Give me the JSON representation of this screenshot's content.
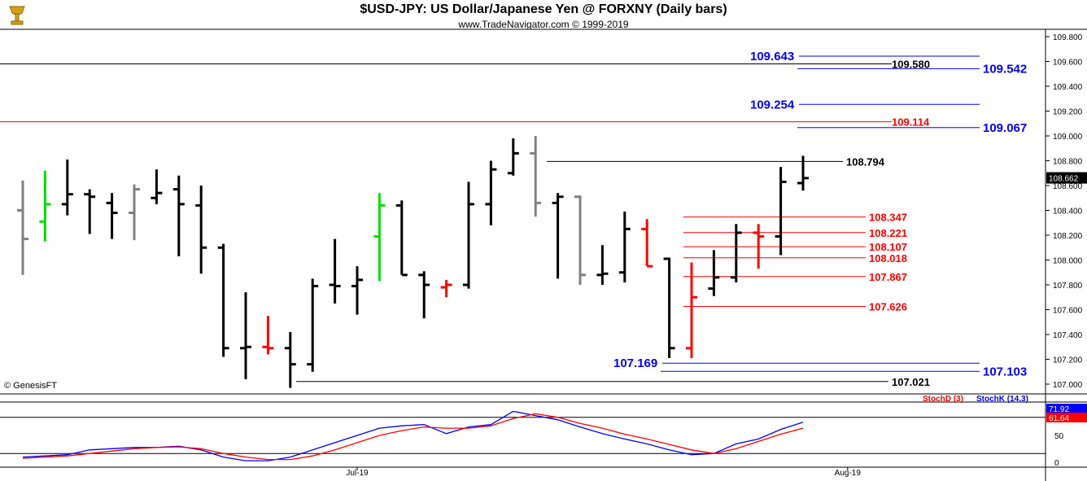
{
  "header": {
    "title": "$USD-JPY:  US Dollar/Japanese Yen @ FORXNY  (Daily bars)",
    "subtitle": "www.TradeNavigator.com © 1999-2019"
  },
  "credit": "© GenesisFT",
  "colors": {
    "blue": "#0000ff",
    "red": "#ff0000",
    "black": "#000000",
    "gray": "#808080",
    "green": "#00e000",
    "logo": "#d4a017"
  },
  "chart_data": [
    {
      "type": "ohlc",
      "title": "$USD-JPY:  US Dollar/Japanese Yen @ FORXNY  (Daily bars)",
      "ylim": [
        106.95,
        109.7
      ],
      "yticks": [
        "109.800",
        "109.600",
        "109.400",
        "109.200",
        "109.000",
        "108.800",
        "108.600",
        "108.400",
        "108.200",
        "108.000",
        "107.800",
        "107.600",
        "107.400",
        "107.200",
        "107.000"
      ],
      "ytick_values": [
        109.8,
        109.6,
        109.4,
        109.2,
        109.0,
        108.8,
        108.6,
        108.4,
        108.2,
        108.0,
        107.8,
        107.6,
        107.4,
        107.2,
        107.0
      ],
      "last_price": "108.662",
      "xlabels": [
        {
          "label": "Jul-19",
          "bar": 15
        },
        {
          "label": "Aug-19",
          "bar": 37
        }
      ],
      "bars": [
        {
          "o": 108.4,
          "h": 108.64,
          "l": 107.88,
          "c": 108.17,
          "color": "gray"
        },
        {
          "o": 108.31,
          "h": 108.72,
          "l": 108.15,
          "c": 108.45,
          "color": "green"
        },
        {
          "o": 108.45,
          "h": 108.81,
          "l": 108.36,
          "c": 108.53,
          "color": "black"
        },
        {
          "o": 108.53,
          "h": 108.57,
          "l": 108.21,
          "c": 108.51,
          "color": "black"
        },
        {
          "o": 108.46,
          "h": 108.54,
          "l": 108.17,
          "c": 108.38,
          "color": "black"
        },
        {
          "o": 108.38,
          "h": 108.61,
          "l": 108.16,
          "c": 108.57,
          "color": "gray"
        },
        {
          "o": 108.5,
          "h": 108.73,
          "l": 108.45,
          "c": 108.54,
          "color": "black"
        },
        {
          "o": 108.57,
          "h": 108.68,
          "l": 108.03,
          "c": 108.45,
          "color": "black"
        },
        {
          "o": 108.44,
          "h": 108.6,
          "l": 107.89,
          "c": 108.1,
          "color": "black"
        },
        {
          "o": 108.1,
          "h": 108.13,
          "l": 107.22,
          "c": 107.29,
          "color": "black"
        },
        {
          "o": 107.29,
          "h": 107.74,
          "l": 107.04,
          "c": 107.3,
          "color": "black"
        },
        {
          "o": 107.3,
          "h": 107.55,
          "l": 107.24,
          "c": 107.29,
          "color": "red"
        },
        {
          "o": 107.29,
          "h": 107.42,
          "l": 106.97,
          "c": 107.16,
          "color": "black"
        },
        {
          "o": 107.16,
          "h": 107.85,
          "l": 107.1,
          "c": 107.79,
          "color": "black"
        },
        {
          "o": 107.8,
          "h": 108.17,
          "l": 107.65,
          "c": 107.79,
          "color": "black"
        },
        {
          "o": 107.79,
          "h": 107.95,
          "l": 107.56,
          "c": 107.84,
          "color": "black"
        },
        {
          "o": 108.19,
          "h": 108.54,
          "l": 107.83,
          "c": 108.44,
          "color": "green"
        },
        {
          "o": 108.44,
          "h": 108.48,
          "l": 107.88,
          "c": 107.88,
          "color": "black"
        },
        {
          "o": 107.88,
          "h": 107.91,
          "l": 107.53,
          "c": 107.8,
          "color": "black"
        },
        {
          "o": 107.78,
          "h": 107.84,
          "l": 107.7,
          "c": 107.8,
          "color": "red"
        },
        {
          "o": 107.8,
          "h": 108.63,
          "l": 107.77,
          "c": 108.45,
          "color": "black"
        },
        {
          "o": 108.45,
          "h": 108.8,
          "l": 108.28,
          "c": 108.73,
          "color": "black"
        },
        {
          "o": 108.7,
          "h": 108.98,
          "l": 108.68,
          "c": 108.86,
          "color": "black"
        },
        {
          "o": 108.86,
          "h": 109.0,
          "l": 108.35,
          "c": 108.46,
          "color": "gray"
        },
        {
          "o": 108.46,
          "h": 108.54,
          "l": 107.85,
          "c": 108.51,
          "color": "black"
        },
        {
          "o": 108.51,
          "h": 108.52,
          "l": 107.8,
          "c": 107.88,
          "color": "gray"
        },
        {
          "o": 107.88,
          "h": 108.12,
          "l": 107.8,
          "c": 107.89,
          "color": "black"
        },
        {
          "o": 107.9,
          "h": 108.39,
          "l": 107.82,
          "c": 108.25,
          "color": "black"
        },
        {
          "o": 108.25,
          "h": 108.33,
          "l": 107.95,
          "c": 107.95,
          "color": "red"
        },
        {
          "o": 108.01,
          "h": 108.02,
          "l": 107.21,
          "c": 107.29,
          "color": "black"
        },
        {
          "o": 107.29,
          "h": 107.98,
          "l": 107.21,
          "c": 107.7,
          "color": "red"
        },
        {
          "o": 107.77,
          "h": 108.08,
          "l": 107.71,
          "c": 107.86,
          "color": "black"
        },
        {
          "o": 107.86,
          "h": 108.29,
          "l": 107.82,
          "c": 108.22,
          "color": "black"
        },
        {
          "o": 108.22,
          "h": 108.29,
          "l": 107.93,
          "c": 108.19,
          "color": "red"
        },
        {
          "o": 108.19,
          "h": 108.75,
          "l": 108.04,
          "c": 108.63,
          "color": "black"
        },
        {
          "o": 108.62,
          "h": 108.84,
          "l": 108.56,
          "c": 108.66,
          "color": "black"
        }
      ],
      "levels": [
        {
          "value": 109.643,
          "label": "109.643",
          "color": "blue",
          "side": "left"
        },
        {
          "value": 109.58,
          "label": "109.580",
          "color": "black",
          "side": "right"
        },
        {
          "value": 109.542,
          "label": "109.542",
          "color": "blue",
          "side": "right"
        },
        {
          "value": 109.254,
          "label": "109.254",
          "color": "blue",
          "side": "left"
        },
        {
          "value": 109.114,
          "label": "109.114",
          "color": "red",
          "side": "right"
        },
        {
          "value": 109.067,
          "label": "109.067",
          "color": "blue",
          "side": "right"
        },
        {
          "value": 108.794,
          "label": "108.794",
          "color": "black",
          "side": "right"
        },
        {
          "value": 108.347,
          "label": "108.347",
          "color": "red",
          "side": "right"
        },
        {
          "value": 108.221,
          "label": "108.221",
          "color": "red",
          "side": "right"
        },
        {
          "value": 108.107,
          "label": "108.107",
          "color": "red",
          "side": "right"
        },
        {
          "value": 108.018,
          "label": "108.018",
          "color": "red",
          "side": "right"
        },
        {
          "value": 107.867,
          "label": "107.867",
          "color": "red",
          "side": "right"
        },
        {
          "value": 107.626,
          "label": "107.626",
          "color": "red",
          "side": "right"
        },
        {
          "value": 107.169,
          "label": "107.169",
          "color": "blue",
          "side": "left"
        },
        {
          "value": 107.103,
          "label": "107.103",
          "color": "blue",
          "side": "right"
        },
        {
          "value": 107.021,
          "label": "107.021",
          "color": "black",
          "side": "right"
        }
      ]
    },
    {
      "type": "line",
      "legend": [
        {
          "name": "StochD (3)",
          "color": "red"
        },
        {
          "name": "StochK (14,3)",
          "color": "blue"
        }
      ],
      "ylim": [
        0,
        100
      ],
      "yticks": [
        "50",
        "0"
      ],
      "guide_lines": [
        20,
        80
      ],
      "last_values": {
        "blue": "71.92",
        "red": "61.64"
      },
      "series": [
        {
          "name": "StochK (14,3)",
          "color": "blue",
          "values": [
            14,
            16,
            18,
            26,
            28,
            30,
            30,
            32,
            26,
            14,
            8,
            8,
            14,
            26,
            38,
            50,
            62,
            66,
            68,
            53,
            64,
            68,
            90,
            83,
            76,
            64,
            53,
            44,
            36,
            26,
            18,
            20,
            36,
            44,
            60,
            72
          ]
        },
        {
          "name": "StochD (3)",
          "color": "red",
          "values": [
            12,
            14,
            16,
            20,
            24,
            28,
            30,
            31,
            28,
            20,
            14,
            10,
            10,
            16,
            26,
            38,
            50,
            58,
            64,
            62,
            62,
            66,
            78,
            86,
            80,
            70,
            62,
            52,
            44,
            35,
            26,
            20,
            28,
            40,
            52,
            62
          ]
        }
      ]
    }
  ]
}
